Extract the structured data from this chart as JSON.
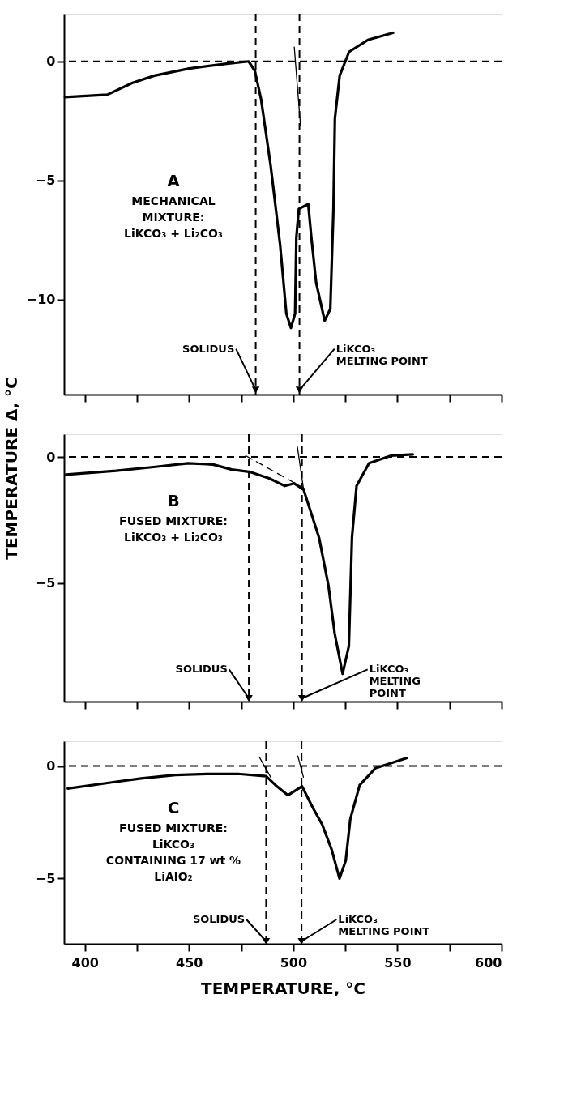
{
  "chart_data": [
    {
      "type": "line",
      "xlim": [
        390,
        600
      ],
      "xticks": [
        400,
        {
          "value": 425,
          "label": null
        },
        450,
        {
          "value": 475,
          "label": null
        },
        500,
        {
          "value": 525,
          "label": null
        },
        550,
        {
          "value": 575,
          "label": null
        },
        600
      ],
      "ylim": [
        -14,
        2
      ],
      "yticks": [
        0,
        -5,
        -10
      ],
      "tick_labels": "y",
      "grid": false,
      "annotations": [
        "A",
        "MECHANICAL\nMIXTURE:\nLiKCO₃ + Li₂CO₃"
      ],
      "ref_lines": [
        {
          "axis": "y",
          "value": 0,
          "line_style": "dashed"
        },
        {
          "axis": "x",
          "value": 482,
          "label": "SOLIDUS",
          "line_style": "dashed"
        },
        {
          "axis": "x",
          "value": 503,
          "label": "LiKCO₃\nMELTING POINT",
          "line_style": "dashed"
        }
      ],
      "series": [
        {
          "color": "#000000",
          "line_style": "solid",
          "x": [
            390.5,
            410.8,
            422.9,
            433.4,
            450,
            468.1,
            478.6,
            481.6,
            484.6,
            489.2,
            493.7,
            496.7,
            498.9,
            500.9,
            501.5,
            502.7,
            507.2,
            508.7,
            511,
            515.1,
            517.8,
            519.3,
            520,
            522.3,
            526.8,
            535.8,
            547.9
          ],
          "values": [
            -1.5,
            -1.4,
            -0.9,
            -0.6,
            -0.3,
            -0.1,
            0,
            -0.4,
            -1.6,
            -4.4,
            -7.7,
            -10.6,
            -11.2,
            -10.6,
            -7.4,
            -6.2,
            -6.0,
            -7.4,
            -9.3,
            -10.9,
            -10.4,
            -6.2,
            -2.4,
            -0.6,
            0.4,
            0.9,
            1.2
          ]
        },
        {
          "color": "#000000",
          "line_style": "solid",
          "x": [
            500.5,
            503.5
          ],
          "values": [
            0.6,
            -2.7
          ]
        }
      ]
    },
    {
      "type": "line",
      "xlim": [
        390,
        600
      ],
      "xticks": [
        400,
        {
          "value": 425,
          "label": null
        },
        450,
        {
          "value": 475,
          "label": null
        },
        500,
        {
          "value": 525,
          "label": null
        },
        550,
        {
          "value": 575,
          "label": null
        },
        600
      ],
      "ylim": [
        -9.7,
        0.9
      ],
      "yticks": [
        0,
        -5
      ],
      "tick_labels": "y",
      "grid": false,
      "ylabel": "TEMPERATURE Δ, °C",
      "annotations": [
        "B",
        "FUSED MIXTURE:\nLiKCO₃ + Li₂CO₃"
      ],
      "ref_lines": [
        {
          "axis": "y",
          "value": 0,
          "line_style": "dashed"
        },
        {
          "axis": "x",
          "value": 478.7,
          "label": "SOLIDUS",
          "line_style": "dashed"
        },
        {
          "axis": "x",
          "value": 504.2,
          "label": "LiKCO₃\nMELTING\nPOINT",
          "line_style": "dashed"
        }
      ],
      "series": [
        {
          "color": "#000000",
          "line_style": "solid",
          "x": [
            391,
            415,
            433,
            449.5,
            461.5,
            470.5,
            479.5,
            488.5,
            496,
            500.4,
            505,
            512.4,
            516.9,
            519.9,
            523.7,
            526.7,
            528.2,
            530.4,
            536.4,
            546.9,
            557.4
          ],
          "values": [
            -0.7,
            -0.55,
            -0.4,
            -0.25,
            -0.3,
            -0.5,
            -0.6,
            -0.85,
            -1.15,
            -1.05,
            -1.3,
            -3.2,
            -5.1,
            -7.0,
            -8.6,
            -7.5,
            -3.2,
            -1.15,
            -0.25,
            0.05,
            0.1
          ]
        },
        {
          "color": "#000000",
          "line_style": "dashed",
          "x": [
            477.2,
            506.4
          ],
          "values": [
            0.05,
            -1.3
          ]
        },
        {
          "color": "#000000",
          "line_style": "solid",
          "x": [
            502,
            505
          ],
          "values": [
            0.4,
            -1.3
          ]
        }
      ]
    },
    {
      "type": "line",
      "xlim": [
        390,
        600
      ],
      "xticks": [
        400,
        {
          "value": 425,
          "label": null
        },
        450,
        {
          "value": 475,
          "label": null
        },
        500,
        {
          "value": 525,
          "label": null
        },
        550,
        {
          "value": 575,
          "label": null
        },
        600
      ],
      "ylim": [
        -7.9,
        1.1
      ],
      "yticks": [
        0,
        -5
      ],
      "grid": false,
      "xlabel": "TEMPERATURE, °C",
      "annotations": [
        "C",
        "FUSED MIXTURE:\nLiKCO₃\nCONTAINING 17 wt %\nLiAlO₂"
      ],
      "ref_lines": [
        {
          "axis": "y",
          "value": 0,
          "line_style": "dashed"
        },
        {
          "axis": "x",
          "value": 487,
          "label": "SOLIDUS",
          "line_style": "dashed"
        },
        {
          "axis": "x",
          "value": 504,
          "label": "LiKCO₃\nMELTING POINT",
          "line_style": "dashed"
        }
      ],
      "series": [
        {
          "color": "#000000",
          "line_style": "solid",
          "x": [
            391.8,
            415,
            427,
            443.5,
            458.5,
            473.5,
            487,
            491.5,
            497.5,
            504.2,
            509.4,
            513.9,
            518.4,
            522.2,
            525.2,
            527.4,
            531.9,
            539.4,
            554.4
          ],
          "values": [
            -1.0,
            -0.7,
            -0.55,
            -0.4,
            -0.35,
            -0.35,
            -0.45,
            -0.85,
            -1.3,
            -0.9,
            -1.85,
            -2.6,
            -3.7,
            -5.0,
            -4.2,
            -2.35,
            -0.85,
            -0.1,
            0.35
          ]
        },
        {
          "color": "#000000",
          "line_style": "solid",
          "x": [
            483.7,
            489.2
          ],
          "values": [
            0.4,
            -0.5
          ]
        },
        {
          "color": "#000000",
          "line_style": "solid",
          "x": [
            502.2,
            504.9
          ],
          "values": [
            0.45,
            -0.5
          ]
        }
      ]
    }
  ]
}
